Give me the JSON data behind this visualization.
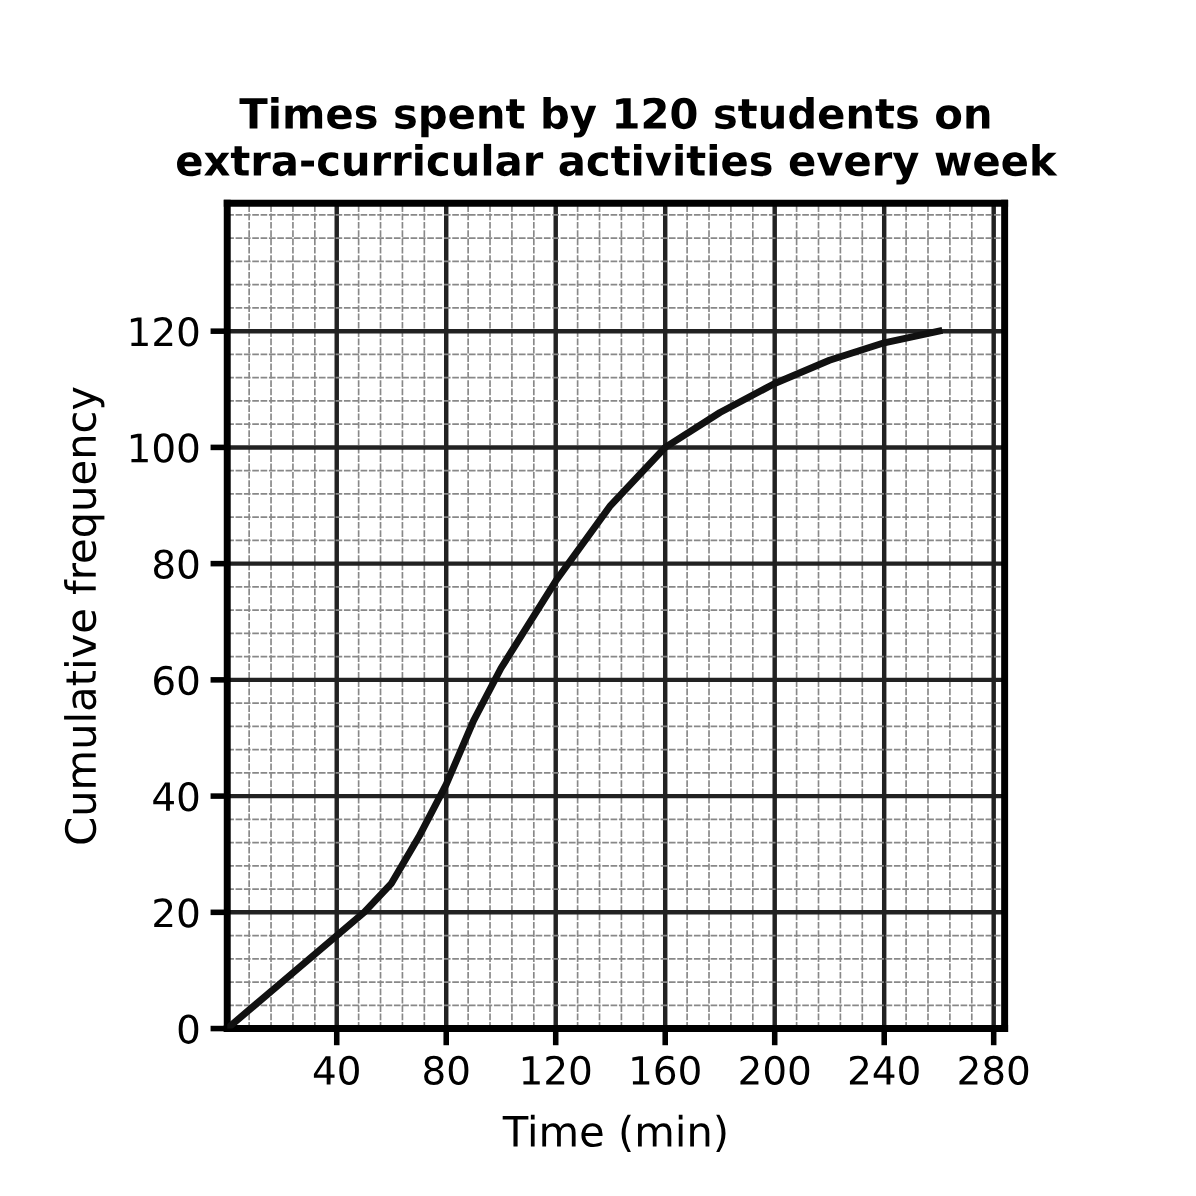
{
  "chart_data": {
    "type": "line",
    "title": "Times spent by 120 students on\nextra-curricular activities every week",
    "xlabel": "Time (min)",
    "ylabel": "Cumulative frequency",
    "x": [
      0,
      20,
      40,
      50,
      60,
      70,
      80,
      90,
      100,
      120,
      140,
      160,
      180,
      200,
      220,
      240,
      260
    ],
    "series": [
      {
        "color": "#111111",
        "values": [
          0,
          8,
          16,
          20,
          25,
          33,
          42,
          53,
          62,
          77,
          90,
          100,
          106,
          111,
          115,
          118,
          120
        ]
      }
    ],
    "xlim": [
      0,
      284
    ],
    "ylim": [
      0,
      142
    ],
    "xticks": [
      40,
      80,
      120,
      160,
      200,
      240,
      280
    ],
    "yticks": [
      0,
      20,
      40,
      60,
      80,
      100,
      120
    ],
    "grid": true,
    "marker": "none",
    "line_style": "solid"
  }
}
